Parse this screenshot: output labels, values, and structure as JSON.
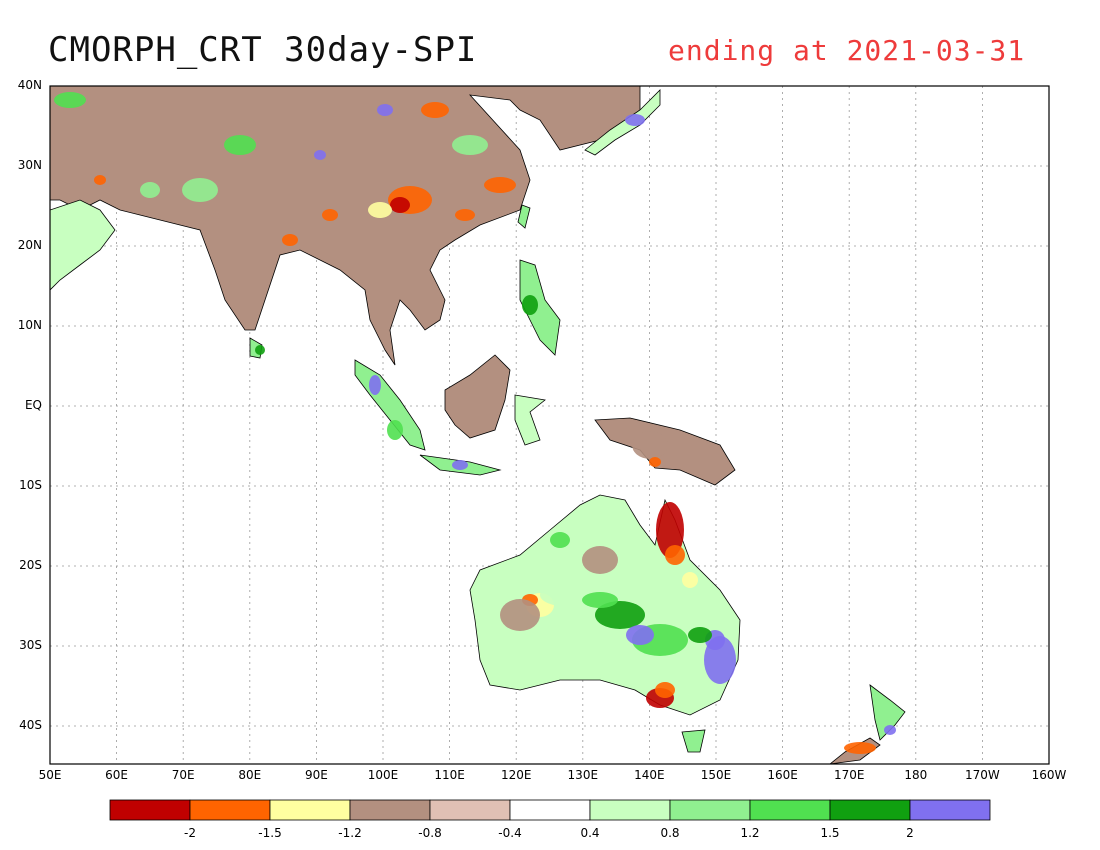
{
  "header": {
    "title": "CMORPH_CRT 30day-SPI",
    "subtitle": "ending at 2021-03-31",
    "subtitle_color": "#ee3b3b"
  },
  "axes": {
    "lat_labels": [
      "40N",
      "30N",
      "20N",
      "10N",
      "EQ",
      "10S",
      "20S",
      "30S",
      "40S"
    ],
    "lon_labels": [
      "50E",
      "60E",
      "70E",
      "80E",
      "90E",
      "100E",
      "110E",
      "120E",
      "130E",
      "140E",
      "150E",
      "160E",
      "170E",
      "180",
      "170W",
      "160W"
    ]
  },
  "legend": {
    "bins": [
      {
        "color": "#c00000"
      },
      {
        "color": "#ff6400"
      },
      {
        "color": "#ffffa0"
      },
      {
        "color": "#b39080"
      },
      {
        "color": "#e0c0b4"
      },
      {
        "color": "#ffffff"
      },
      {
        "color": "#c8ffc0"
      },
      {
        "color": "#90f090"
      },
      {
        "color": "#50e050"
      },
      {
        "color": "#10a010"
      },
      {
        "color": "#8070f0"
      }
    ],
    "labels": [
      "-2",
      "-1.5",
      "-1.2",
      "-0.8",
      "-0.4",
      "0.4",
      "0.8",
      "1.2",
      "1.5",
      "2"
    ]
  },
  "map": {
    "colors": {
      "dry_extreme": "#c00000",
      "dry_severe": "#ff6400",
      "dry_moderate": "#ffffa0",
      "dry_mild": "#b39080",
      "dry_slight": "#e0c0b4",
      "wet_slight": "#c8ffc0",
      "wet_mild": "#90f090",
      "wet_moderate": "#50e050",
      "wet_severe": "#10a010",
      "wet_extreme": "#8070f0",
      "coast": "#000000",
      "grid": "#999999"
    }
  }
}
